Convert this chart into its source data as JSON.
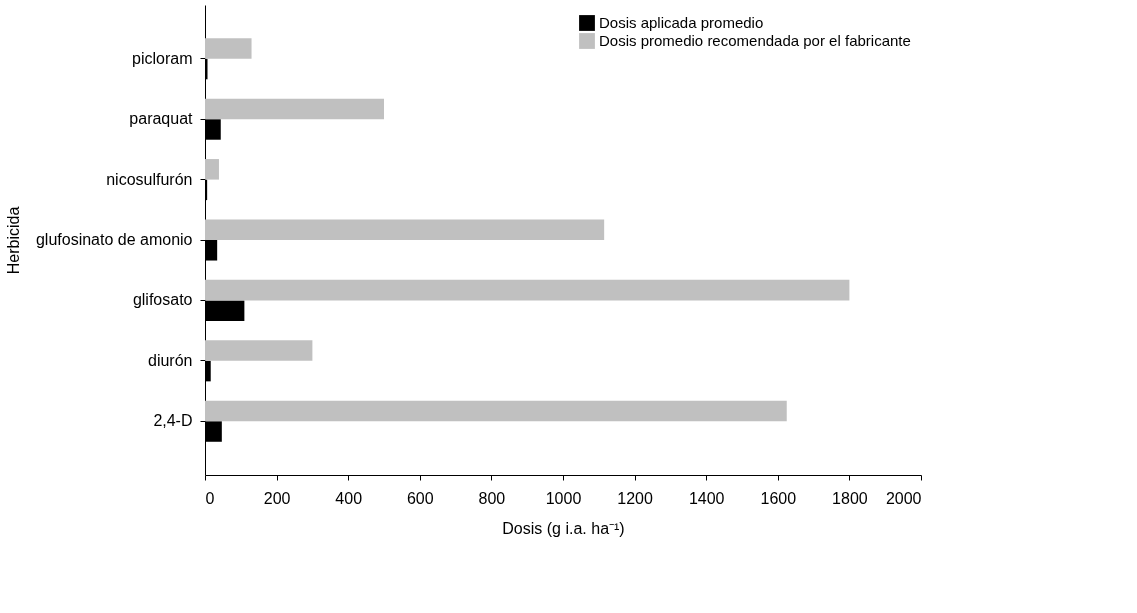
{
  "chart_data": {
    "type": "bar",
    "orientation": "horizontal",
    "ylabel": "Herbicida",
    "xlabel": "Dosis (g i.a. ha⁻¹)",
    "categories": [
      "picloram",
      "paraquat",
      "nicosulfurón",
      "glufosinato de amonio",
      "glifosato",
      "diurón",
      "2,4-D"
    ],
    "series": [
      {
        "name": "Dosis aplicada promedio",
        "color": "#000000",
        "values": [
          7,
          44,
          6,
          34,
          110,
          16,
          47
        ]
      },
      {
        "name": "Dosis promedio recomendada por el fabricante",
        "color": "#c0c0c0",
        "values": [
          130,
          500,
          39,
          1115,
          1800,
          300,
          1625
        ]
      }
    ],
    "xlim": [
      0,
      2000
    ],
    "xticks": [
      0,
      200,
      400,
      600,
      800,
      1000,
      1200,
      1400,
      1600,
      1800,
      2000
    ],
    "grid": false,
    "legend": "top right"
  }
}
